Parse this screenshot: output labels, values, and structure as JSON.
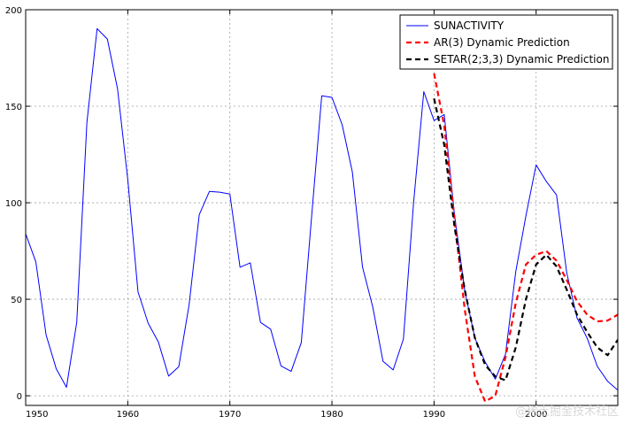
{
  "chart_data": {
    "type": "line",
    "xlim": [
      1950,
      2008
    ],
    "ylim": [
      -5,
      200
    ],
    "x_ticks": [
      1950,
      1960,
      1970,
      1980,
      1990,
      2000
    ],
    "y_ticks": [
      0,
      50,
      100,
      150,
      200
    ],
    "grid": true,
    "legend_position": "top-right",
    "series": [
      {
        "name": "SUNACTIVITY",
        "color": "#0000ff",
        "style": "solid",
        "x": [
          1950,
          1951,
          1952,
          1953,
          1954,
          1955,
          1956,
          1957,
          1958,
          1959,
          1960,
          1961,
          1962,
          1963,
          1964,
          1965,
          1966,
          1967,
          1968,
          1969,
          1970,
          1971,
          1972,
          1973,
          1974,
          1975,
          1976,
          1977,
          1978,
          1979,
          1980,
          1981,
          1982,
          1983,
          1984,
          1985,
          1986,
          1987,
          1988,
          1989,
          1990,
          1991,
          1992,
          1993,
          1994,
          1995,
          1996,
          1997,
          1998,
          1999,
          2000,
          2001,
          2002,
          2003,
          2004,
          2005,
          2006,
          2007,
          2008
        ],
        "y": [
          83.9,
          69.4,
          31.5,
          13.9,
          4.4,
          38.0,
          141.7,
          190.2,
          184.8,
          159.0,
          112.3,
          53.9,
          37.6,
          27.9,
          10.2,
          15.1,
          47.0,
          93.8,
          105.9,
          105.5,
          104.5,
          66.6,
          68.9,
          38.0,
          34.5,
          15.5,
          12.6,
          27.5,
          92.5,
          155.4,
          154.6,
          140.4,
          115.9,
          66.6,
          45.9,
          17.9,
          13.4,
          29.4,
          100.2,
          157.6,
          142.6,
          145.7,
          94.3,
          54.6,
          29.9,
          17.5,
          8.6,
          21.5,
          64.3,
          93.3,
          119.6,
          111.0,
          104.0,
          63.7,
          40.4,
          29.8,
          15.2,
          7.5,
          2.9
        ]
      },
      {
        "name": "AR(3) Dynamic Prediction",
        "color": "#ff0000",
        "style": "dashed",
        "x": [
          1990,
          1991,
          1992,
          1993,
          1994,
          1995,
          1996,
          1997,
          1998,
          1999,
          2000,
          2001,
          2002,
          2003,
          2004,
          2005,
          2006,
          2007,
          2008
        ],
        "y": [
          167.0,
          140.0,
          92.0,
          45.0,
          10.0,
          -3.0,
          0.0,
          20.0,
          48.0,
          68.0,
          73.0,
          75.0,
          70.0,
          60.0,
          49.0,
          42.0,
          38.5,
          39.0,
          42.0
        ]
      },
      {
        "name": "SETAR(2;3,3) Dynamic Prediction",
        "color": "#000000",
        "style": "dashed",
        "x": [
          1990,
          1991,
          1992,
          1993,
          1994,
          1995,
          1996,
          1997,
          1998,
          1999,
          2000,
          2001,
          2002,
          2003,
          2004,
          2005,
          2006,
          2007,
          2008
        ],
        "y": [
          154.0,
          130.0,
          88.0,
          55.0,
          30.0,
          16.0,
          10.0,
          8.0,
          25.0,
          50.0,
          68.0,
          73.0,
          67.0,
          55.0,
          42.0,
          33.0,
          25.0,
          21.0,
          29.0
        ]
      }
    ]
  },
  "watermark": "@稀土掘金技术社区"
}
